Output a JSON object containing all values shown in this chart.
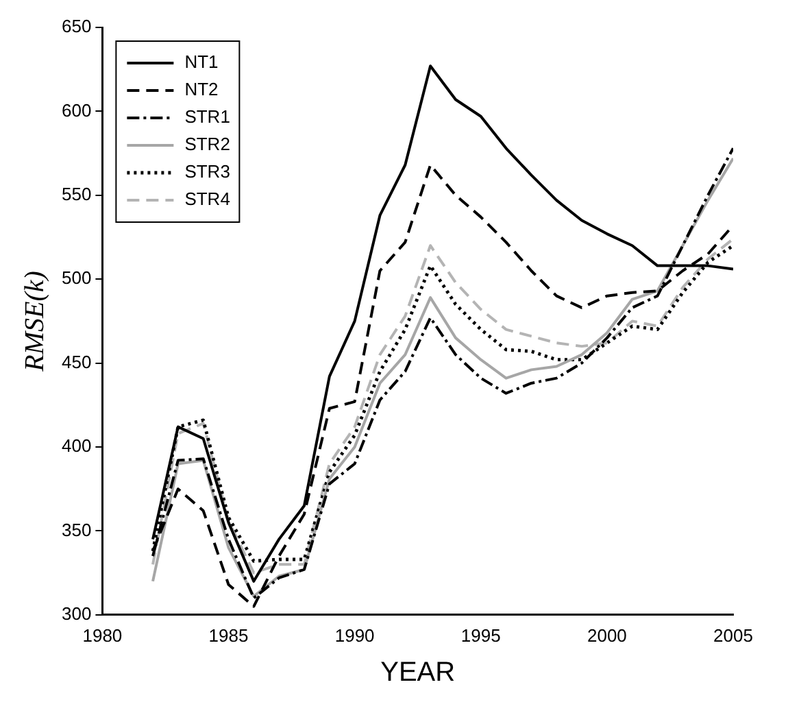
{
  "chart_data": {
    "type": "line",
    "xlabel": "YEAR",
    "ylabel": "RMSE(k)",
    "x": [
      1982,
      1983,
      1984,
      1985,
      1986,
      1987,
      1988,
      1989,
      1990,
      1991,
      1992,
      1993,
      1994,
      1995,
      1996,
      1997,
      1998,
      1999,
      2000,
      2001,
      2002,
      2003,
      2004,
      2005
    ],
    "xlim": [
      1980,
      2005
    ],
    "xticks": [
      1980,
      1985,
      1990,
      1995,
      2000,
      2005
    ],
    "ylim": [
      300,
      650
    ],
    "yticks": [
      300,
      350,
      400,
      450,
      500,
      550,
      600,
      650
    ],
    "grid": false,
    "legend": "top left",
    "marker": "none",
    "series": [
      {
        "name": "NT1",
        "color": "#000000",
        "line_style": "solid",
        "values": [
          345,
          412,
          405,
          355,
          320,
          345,
          365,
          442,
          475,
          538,
          568,
          627,
          607,
          597,
          578,
          562,
          547,
          535,
          527,
          520,
          508,
          508,
          508,
          506
        ]
      },
      {
        "name": "NT2",
        "color": "#000000",
        "line_style": "dashed",
        "values": [
          338,
          375,
          362,
          318,
          305,
          335,
          360,
          423,
          427,
          505,
          522,
          568,
          550,
          537,
          522,
          505,
          490,
          483,
          490,
          492,
          493,
          505,
          515,
          532
        ]
      },
      {
        "name": "STR1",
        "color": "#000000",
        "line_style": "dashdot",
        "values": [
          335,
          392,
          393,
          345,
          310,
          322,
          327,
          378,
          390,
          428,
          445,
          477,
          455,
          441,
          432,
          438,
          441,
          450,
          465,
          483,
          490,
          520,
          550,
          578
        ]
      },
      {
        "name": "STR2",
        "color": "#a6a6a6",
        "line_style": "solid",
        "values": [
          320,
          390,
          392,
          340,
          311,
          323,
          327,
          381,
          400,
          438,
          455,
          489,
          465,
          452,
          441,
          446,
          448,
          455,
          468,
          488,
          493,
          520,
          547,
          572
        ]
      },
      {
        "name": "STR3",
        "color": "#000000",
        "line_style": "dotted",
        "values": [
          338,
          412,
          416,
          358,
          332,
          333,
          333,
          385,
          407,
          445,
          470,
          508,
          485,
          470,
          458,
          457,
          452,
          452,
          462,
          472,
          470,
          492,
          510,
          520
        ]
      },
      {
        "name": "STR4",
        "color": "#b4b4b4",
        "line_style": "dashed",
        "values": [
          330,
          408,
          414,
          356,
          325,
          330,
          330,
          390,
          412,
          455,
          478,
          520,
          498,
          482,
          470,
          466,
          462,
          460,
          462,
          475,
          472,
          495,
          512,
          524
        ]
      }
    ]
  }
}
